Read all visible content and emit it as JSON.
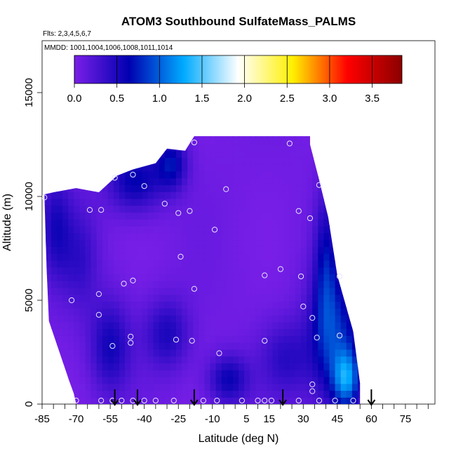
{
  "chart_data": {
    "type": "heatmap",
    "title": "ATOM3 Southbound SulfateMass_PALMS",
    "flights_label": "Flts: 2,3,4,5,6,7",
    "mmdd_label": "MMDD: 1001,1004,1006,1008,1011,1014",
    "xlabel": "Latitude (deg N)",
    "ylabel": "Altitude (m)",
    "xlim": [
      -85,
      88
    ],
    "ylim": [
      0,
      17500
    ],
    "x_ticks": [
      "-85",
      "-70",
      "-55",
      "-40",
      "-25",
      "-10",
      "5",
      "15",
      "30",
      "45",
      "60",
      "75"
    ],
    "y_ticks": [
      "0",
      "5000",
      "10000",
      "15000"
    ],
    "colorbar": {
      "range": [
        0,
        3.85
      ],
      "ticks": [
        "0.0",
        "0.5",
        "1.0",
        "1.5",
        "2.0",
        "2.5",
        "3.0",
        "3.5"
      ],
      "colors": [
        "#7a1fe8",
        "#0000b0",
        "#00aaff",
        "#ffffff",
        "#fff000",
        "#ff0000",
        "#8b0000"
      ]
    },
    "field_boundary": [
      [
        -84,
        10100
      ],
      [
        -83,
        6500
      ],
      [
        -82,
        4000
      ],
      [
        -73,
        1100
      ],
      [
        -71,
        500
      ],
      [
        -70,
        0
      ],
      [
        55,
        0
      ],
      [
        55,
        1000
      ],
      [
        52,
        3500
      ],
      [
        45,
        6200
      ],
      [
        41,
        9000
      ],
      [
        37,
        10800
      ],
      [
        33,
        12500
      ],
      [
        33,
        12900
      ],
      [
        -18,
        12900
      ],
      [
        -22,
        12200
      ],
      [
        -30,
        12300
      ],
      [
        -35,
        11600
      ],
      [
        -45,
        11300
      ],
      [
        -52,
        11000
      ],
      [
        -60,
        10200
      ],
      [
        -70,
        10400
      ],
      [
        -80,
        10200
      ]
    ],
    "high_regions": [
      {
        "center": [
          -44,
          10800
        ],
        "radius": [
          12,
          1500
        ],
        "value": 0.6
      },
      {
        "center": [
          -28,
          11600
        ],
        "radius": [
          7,
          1300
        ],
        "value": 0.6
      },
      {
        "center": [
          -79,
          8500
        ],
        "radius": [
          7,
          2600
        ],
        "value": 0.45
      },
      {
        "center": [
          -55,
          2800
        ],
        "radius": [
          9,
          2200
        ],
        "value": 0.5
      },
      {
        "center": [
          -30,
          3400
        ],
        "radius": [
          10,
          1700
        ],
        "value": 0.45
      },
      {
        "center": [
          -3,
          1200
        ],
        "radius": [
          9,
          1200
        ],
        "value": 0.55
      },
      {
        "center": [
          44,
          3200
        ],
        "radius": [
          12,
          3200
        ],
        "value": 0.75
      },
      {
        "center": [
          40,
          6800
        ],
        "radius": [
          5,
          3500
        ],
        "value": 0.5
      },
      {
        "center": [
          49,
          1200
        ],
        "radius": [
          6,
          1400
        ],
        "value": 0.9
      },
      {
        "center": [
          22,
          2200
        ],
        "radius": [
          11,
          1800
        ],
        "value": 0.35
      },
      {
        "center": [
          -68,
          7000
        ],
        "radius": [
          8,
          2500
        ],
        "value": 0.3
      }
    ],
    "samples": [
      {
        "x": -70,
        "y": 170
      },
      {
        "x": -59,
        "y": 170
      },
      {
        "x": -54,
        "y": 170
      },
      {
        "x": -50,
        "y": 170
      },
      {
        "x": -45,
        "y": 170
      },
      {
        "x": -40,
        "y": 170
      },
      {
        "x": -35,
        "y": 170
      },
      {
        "x": -27,
        "y": 170
      },
      {
        "x": -14,
        "y": 170
      },
      {
        "x": -8,
        "y": 170
      },
      {
        "x": 3,
        "y": 170
      },
      {
        "x": 10,
        "y": 170
      },
      {
        "x": 13,
        "y": 170
      },
      {
        "x": 16,
        "y": 170
      },
      {
        "x": 28,
        "y": 170
      },
      {
        "x": 37,
        "y": 170
      },
      {
        "x": 44,
        "y": 170
      },
      {
        "x": 52,
        "y": 170
      },
      {
        "x": 34,
        "y": 620
      },
      {
        "x": 34,
        "y": 950
      },
      {
        "x": -54,
        "y": 2800
      },
      {
        "x": -46,
        "y": 2950
      },
      {
        "x": -46,
        "y": 3250
      },
      {
        "x": -26,
        "y": 3100
      },
      {
        "x": -19,
        "y": 3050
      },
      {
        "x": -7,
        "y": 2450
      },
      {
        "x": 13,
        "y": 3050
      },
      {
        "x": 36,
        "y": 3200
      },
      {
        "x": 46,
        "y": 3300
      },
      {
        "x": -72,
        "y": 5000
      },
      {
        "x": -60,
        "y": 4300
      },
      {
        "x": -60,
        "y": 5300
      },
      {
        "x": 30,
        "y": 4700
      },
      {
        "x": 34,
        "y": 4150
      },
      {
        "x": -49,
        "y": 5800
      },
      {
        "x": -45,
        "y": 5950
      },
      {
        "x": -18,
        "y": 5550
      },
      {
        "x": 13,
        "y": 6200
      },
      {
        "x": 20,
        "y": 6500
      },
      {
        "x": 29,
        "y": 6150
      },
      {
        "x": 46,
        "y": 6150
      },
      {
        "x": -24,
        "y": 7100
      },
      {
        "x": -9,
        "y": 8400
      },
      {
        "x": -64,
        "y": 9350
      },
      {
        "x": -59,
        "y": 9350
      },
      {
        "x": -31,
        "y": 9650
      },
      {
        "x": -25,
        "y": 9200
      },
      {
        "x": -20,
        "y": 9300
      },
      {
        "x": 28,
        "y": 9300
      },
      {
        "x": 33,
        "y": 8950
      },
      {
        "x": -84,
        "y": 9950
      },
      {
        "x": -53,
        "y": 10900
      },
      {
        "x": -45,
        "y": 11050
      },
      {
        "x": -40,
        "y": 10500
      },
      {
        "x": -4,
        "y": 10350
      },
      {
        "x": 37,
        "y": 10550
      },
      {
        "x": -18,
        "y": 12600
      },
      {
        "x": 24,
        "y": 12550
      }
    ],
    "flight_markers_x": [
      -53,
      -43,
      -18,
      21,
      60
    ]
  }
}
